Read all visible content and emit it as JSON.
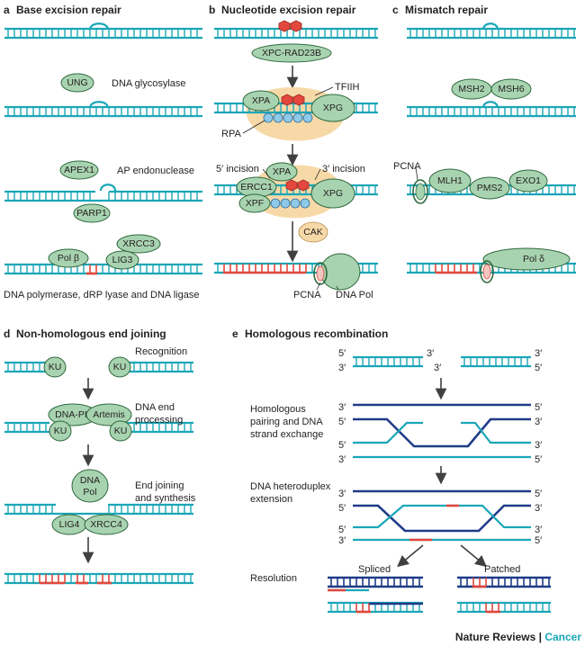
{
  "panels": {
    "a": {
      "letter": "a",
      "title": "Base excision repair",
      "labels": [
        "DNA glycosylase",
        "AP endonuclease",
        "DNA polymerase, dRP lyase and DNA ligase"
      ],
      "proteins": [
        "UNG",
        "APEX1",
        "PARP1",
        "Pol β",
        "XRCC3",
        "LIG3"
      ]
    },
    "b": {
      "letter": "b",
      "title": "Nucleotide excision repair",
      "labels": [
        "TFIIH",
        "RPA",
        "5′ incision",
        "3′ incision",
        "PCNA",
        "DNA Pol"
      ],
      "proteins": [
        "XPC-RAD23B",
        "XPA",
        "XPG",
        "XPA",
        "ERCC1",
        "XPF",
        "XPG",
        "CAK"
      ]
    },
    "c": {
      "letter": "c",
      "title": "Mismatch repair",
      "labels": [
        "PCNA"
      ],
      "proteins": [
        "MSH2",
        "MSH6",
        "MLH1",
        "PMS2",
        "EXO1",
        "Pol δ"
      ]
    },
    "d": {
      "letter": "d",
      "title": "Non-homologous end joining",
      "labels": [
        "Recognition",
        "DNA end",
        "processing",
        "End joining",
        "and synthesis"
      ],
      "proteins": [
        "KU",
        "KU",
        "DNA-PK",
        "Artemis",
        "KU",
        "KU",
        "DNA",
        "Pol",
        "LIG4",
        "XRCC4"
      ]
    },
    "e": {
      "letter": "e",
      "title": "Homologous recombination",
      "labels": [
        "Homologous",
        "pairing and DNA",
        "strand exchange",
        "DNA heteroduplex",
        "extension",
        "Resolution",
        "Spliced",
        "Patched"
      ],
      "ends": {
        "five": "5′",
        "three": "3′"
      }
    }
  },
  "footer": {
    "journal": "Nature Reviews",
    "sep": " | ",
    "section": "Cancer"
  }
}
